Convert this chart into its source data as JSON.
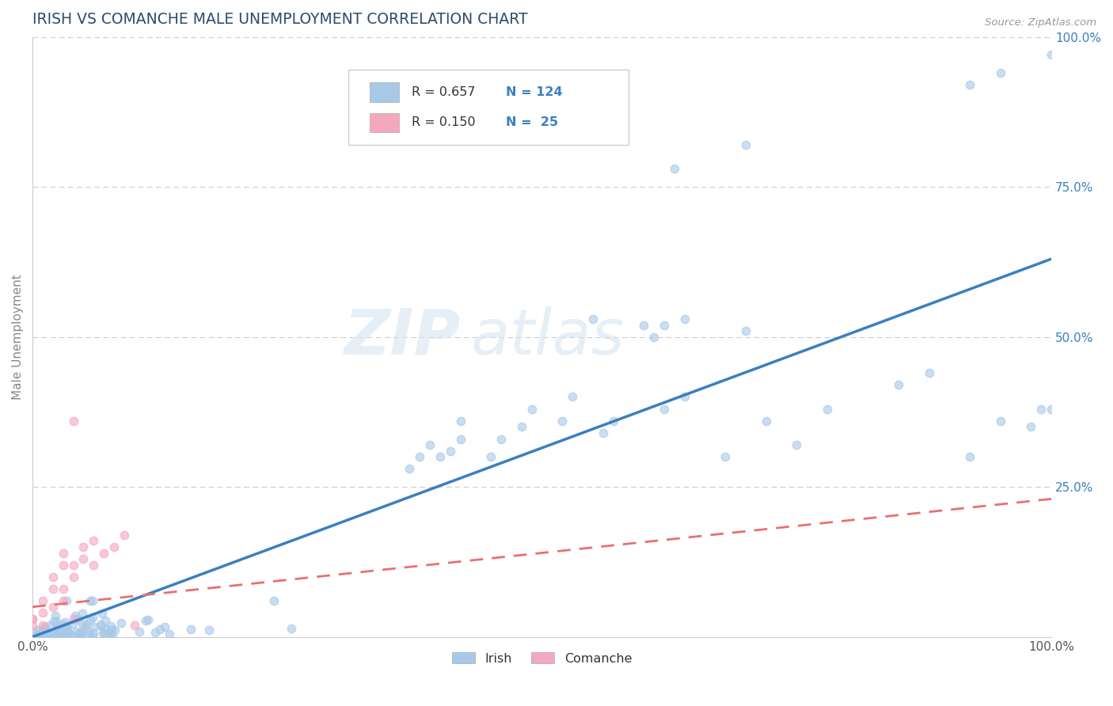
{
  "title": "IRISH VS COMANCHE MALE UNEMPLOYMENT CORRELATION CHART",
  "source_text": "Source: ZipAtlas.com",
  "ylabel": "Male Unemployment",
  "xlim": [
    0.0,
    1.0
  ],
  "ylim": [
    0.0,
    1.0
  ],
  "watermark_line1": "ZIP",
  "watermark_line2": "atlas",
  "irish_R": 0.657,
  "irish_N": 124,
  "comanche_R": 0.15,
  "comanche_N": 25,
  "irish_color": "#a8c8e8",
  "comanche_color": "#f4a8be",
  "irish_line_color": "#3a7fc1",
  "comanche_line_color": "#e87070",
  "background_color": "#ffffff",
  "grid_color": "#cccccc",
  "title_color": "#2c4a6e",
  "axis_label_color": "#888888",
  "right_tick_color": "#3a7fc1",
  "legend_box_color": "#dddddd"
}
